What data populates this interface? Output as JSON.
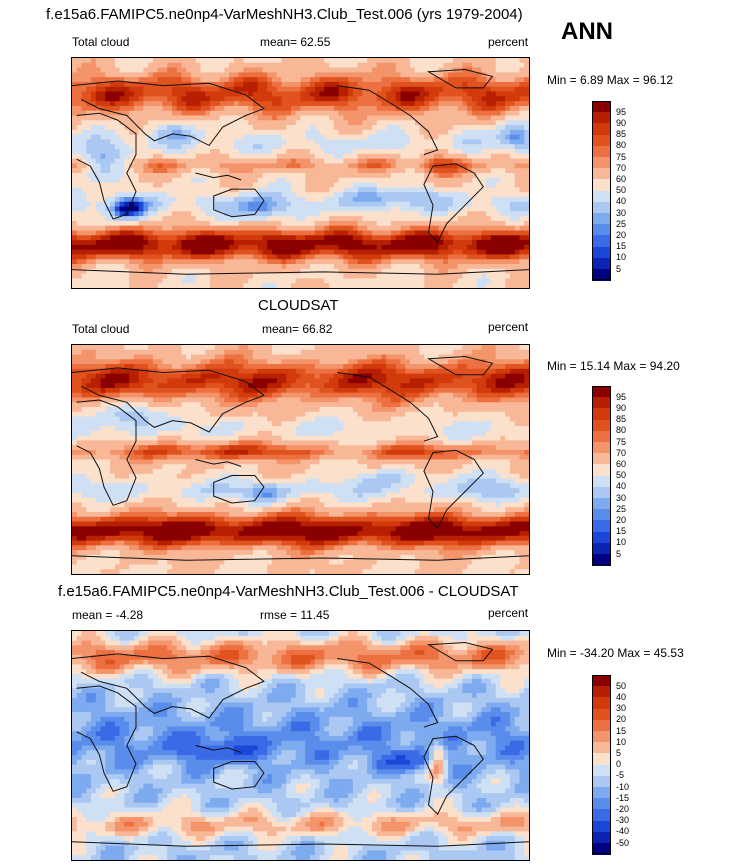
{
  "header": {
    "main_title": "f.e15a6.FAMIPC5.ne0np4-VarMeshNH3.Club_Test.006 (yrs 1979-2004)",
    "season": "ANN"
  },
  "chart_data": [
    {
      "type": "heatmap",
      "title": "",
      "left_label": "Total cloud",
      "center_label": "mean=  62.55",
      "right_label": "percent",
      "stats": "Min =   6.89 Max =  96.12",
      "levels": [
        "95",
        "90",
        "85",
        "80",
        "75",
        "70",
        "60",
        "50",
        "40",
        "30",
        "25",
        "20",
        "15",
        "10",
        "5"
      ],
      "colors": [
        "#8a0000",
        "#b62000",
        "#d23a0c",
        "#e0521e",
        "#ec7040",
        "#f4946a",
        "#f8b898",
        "#fbe0cc",
        "#cfe0f4",
        "#aac8f2",
        "#7eaaf0",
        "#5a8ceb",
        "#3a6ae6",
        "#1c46d8",
        "#0a24b4",
        "#000080"
      ],
      "field": "model"
    },
    {
      "type": "heatmap",
      "title": "CLOUDSAT",
      "left_label": "Total cloud",
      "center_label": "mean=  66.82",
      "right_label": "percent",
      "stats": "Min =  15.14 Max =  94.20",
      "levels": [
        "95",
        "90",
        "85",
        "80",
        "75",
        "70",
        "60",
        "50",
        "40",
        "30",
        "25",
        "20",
        "15",
        "10",
        "5"
      ],
      "colors": [
        "#8a0000",
        "#b62000",
        "#d23a0c",
        "#e0521e",
        "#ec7040",
        "#f4946a",
        "#f8b898",
        "#fbe0cc",
        "#cfe0f4",
        "#aac8f2",
        "#7eaaf0",
        "#5a8ceb",
        "#3a6ae6",
        "#1c46d8",
        "#0a24b4",
        "#000080"
      ],
      "field": "obs"
    },
    {
      "type": "heatmap",
      "title": "f.e15a6.FAMIPC5.ne0np4-VarMeshNH3.Club_Test.006 - CLOUDSAT",
      "left_label": "mean =  -4.28",
      "center_label": "rmse =  11.45",
      "right_label": "percent",
      "stats": "Min = -34.20 Max =  45.53",
      "levels": [
        "50",
        "40",
        "30",
        "20",
        "15",
        "10",
        "5",
        "0",
        "-5",
        "-10",
        "-15",
        "-20",
        "-30",
        "-40",
        "-50"
      ],
      "colors": [
        "#8a0000",
        "#b62000",
        "#d23a0c",
        "#e0521e",
        "#ec7040",
        "#f4946a",
        "#f8b898",
        "#fbe0cc",
        "#cfe0f4",
        "#aac8f2",
        "#7eaaf0",
        "#5a8ceb",
        "#3a6ae6",
        "#1c46d8",
        "#0a24b4",
        "#000080"
      ],
      "field": "diff"
    }
  ]
}
